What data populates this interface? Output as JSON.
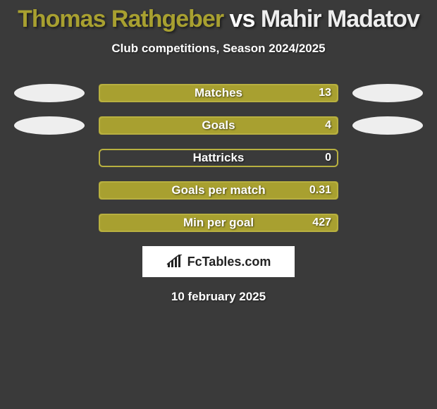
{
  "title": {
    "player1": "Thomas Rathgeber",
    "vs": "vs",
    "player2": "Mahir Madatov",
    "player1_color": "#a8a030",
    "vs_color": "#ffffff",
    "player2_color": "#eeeeee",
    "fontsize": 34
  },
  "subtitle": {
    "text": "Club competitions, Season 2024/2025",
    "color": "#ffffff",
    "fontsize": 17
  },
  "theme": {
    "background": "#3a3a3a",
    "accent": "#a8a030",
    "accent_border": "#b8b040",
    "ellipse_color": "#eeeeee",
    "bar_empty": "#3a3a3a",
    "label_color": "#ffffff",
    "value_color": "#ffffff",
    "label_fontsize": 17,
    "value_fontsize": 16
  },
  "stats": [
    {
      "label": "Matches",
      "right_value": "13",
      "fill_pct": 100,
      "show_left_ellipse": true,
      "show_right_ellipse": true
    },
    {
      "label": "Goals",
      "right_value": "4",
      "fill_pct": 100,
      "show_left_ellipse": true,
      "show_right_ellipse": true
    },
    {
      "label": "Hattricks",
      "right_value": "0",
      "fill_pct": 0,
      "show_left_ellipse": false,
      "show_right_ellipse": false
    },
    {
      "label": "Goals per match",
      "right_value": "0.31",
      "fill_pct": 100,
      "show_left_ellipse": false,
      "show_right_ellipse": false
    },
    {
      "label": "Min per goal",
      "right_value": "427",
      "fill_pct": 100,
      "show_left_ellipse": false,
      "show_right_ellipse": false
    }
  ],
  "brand": {
    "text": "FcTables.com",
    "bg": "#ffffff",
    "text_color": "#222222"
  },
  "date": {
    "text": "10 february 2025",
    "color": "#ffffff"
  }
}
